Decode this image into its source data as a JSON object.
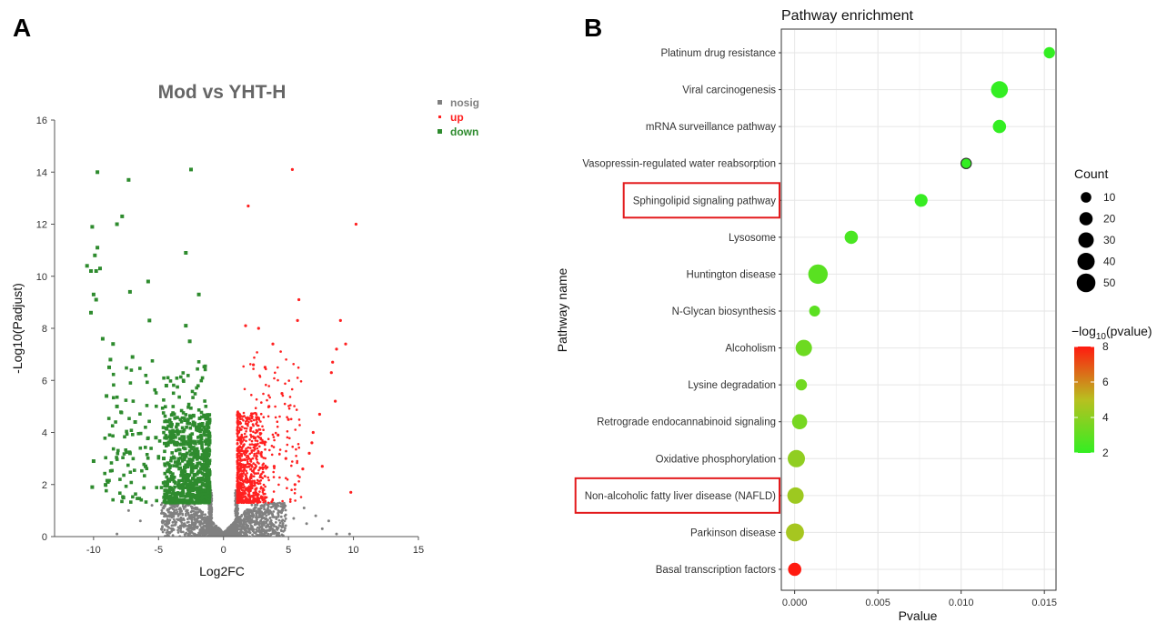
{
  "panels": {
    "a_label": "A",
    "b_label": "B"
  },
  "chart_data": [
    {
      "type": "scatter",
      "title": "Mod vs YHT-H",
      "xlabel": "Log2FC",
      "ylabel": "-Log10(Padjust)",
      "xlim": [
        -13,
        15
      ],
      "ylim": [
        0,
        16
      ],
      "xticks": [
        -10,
        -5,
        0,
        5,
        10,
        15
      ],
      "yticks": [
        0,
        2,
        4,
        6,
        8,
        10,
        12,
        14,
        16
      ],
      "grid": false,
      "legend_position": "top-right",
      "legend": [
        {
          "name": "nosig",
          "color": "#808080"
        },
        {
          "name": "up",
          "color": "#ff2020"
        },
        {
          "name": "down",
          "color": "#2e8b2e"
        }
      ],
      "series": [
        {
          "name": "up",
          "points": [
            [
              5.3,
              14.1
            ],
            [
              1.9,
              12.7
            ],
            [
              10.2,
              12.0
            ],
            [
              5.8,
              9.1
            ],
            [
              5.7,
              8.3
            ],
            [
              9.0,
              8.3
            ],
            [
              9.4,
              7.4
            ],
            [
              8.7,
              7.2
            ],
            [
              8.4,
              6.7
            ],
            [
              8.3,
              6.3
            ],
            [
              8.6,
              5.2
            ],
            [
              7.4,
              4.7
            ],
            [
              6.9,
              4.0
            ],
            [
              6.8,
              3.6
            ],
            [
              6.6,
              3.2
            ],
            [
              9.8,
              1.7
            ],
            [
              1.7,
              8.1
            ],
            [
              2.7,
              8.0
            ],
            [
              3.2,
              6.5
            ],
            [
              3.8,
              7.4
            ],
            [
              4.5,
              5.5
            ],
            [
              2.3,
              6.6
            ],
            [
              3.5,
              5.0
            ],
            [
              5.0,
              4.5
            ],
            [
              4.2,
              3.9
            ],
            [
              6.1,
              2.6
            ],
            [
              5.5,
              2.0
            ],
            [
              7.6,
              2.7
            ],
            [
              4.8,
              3.0
            ],
            [
              3.9,
              2.7
            ]
          ]
        },
        {
          "name": "down",
          "points": [
            [
              -9.7,
              14.0
            ],
            [
              -2.5,
              14.1
            ],
            [
              -7.3,
              13.7
            ],
            [
              -7.8,
              12.3
            ],
            [
              -8.2,
              12.0
            ],
            [
              -10.1,
              11.9
            ],
            [
              -9.7,
              11.1
            ],
            [
              -2.9,
              10.9
            ],
            [
              -9.9,
              10.8
            ],
            [
              -10.5,
              10.4
            ],
            [
              -10.2,
              10.2
            ],
            [
              -9.8,
              10.2
            ],
            [
              -9.5,
              10.3
            ],
            [
              -5.8,
              9.8
            ],
            [
              -10.0,
              9.3
            ],
            [
              -7.2,
              9.4
            ],
            [
              -9.8,
              9.1
            ],
            [
              -1.9,
              9.3
            ],
            [
              -10.2,
              8.6
            ],
            [
              -5.7,
              8.3
            ],
            [
              -2.9,
              8.1
            ],
            [
              -9.3,
              7.6
            ],
            [
              -8.5,
              7.4
            ],
            [
              -2.6,
              7.5
            ],
            [
              -8.7,
              6.8
            ],
            [
              -8.8,
              6.5
            ],
            [
              -7.0,
              6.9
            ],
            [
              -9.0,
              5.4
            ],
            [
              -8.2,
              5.0
            ],
            [
              -4.4,
              5.8
            ],
            [
              -10.0,
              2.9
            ],
            [
              -8.9,
              2.1
            ],
            [
              -10.1,
              1.9
            ],
            [
              -7.7,
              1.5
            ],
            [
              -6.0,
              2.7
            ],
            [
              -3.8,
              4.7
            ],
            [
              -6.8,
              4.4
            ],
            [
              -5.2,
              3.8
            ],
            [
              -7.2,
              3.2
            ],
            [
              -4.6,
              3.0
            ]
          ]
        },
        {
          "name": "nosig",
          "points": [
            [
              -8.2,
              0.1
            ],
            [
              -7.3,
              1.0
            ],
            [
              -5.5,
              1.2
            ],
            [
              -4.6,
              0.9
            ],
            [
              -4.0,
              0.8
            ],
            [
              3.4,
              1.0
            ],
            [
              4.6,
              1.1
            ],
            [
              6.2,
              1.1
            ],
            [
              7.1,
              0.8
            ],
            [
              8.1,
              0.6
            ],
            [
              8.7,
              0.1
            ],
            [
              9.7,
              0.1
            ],
            [
              -3.3,
              0.6
            ],
            [
              -2.7,
              0.4
            ],
            [
              2.7,
              0.5
            ],
            [
              3.9,
              0.4
            ],
            [
              5.4,
              0.7
            ],
            [
              6.4,
              0.5
            ],
            [
              7.6,
              0.3
            ],
            [
              -6.4,
              0.6
            ]
          ]
        }
      ]
    },
    {
      "type": "scatter",
      "title": "Pathway enrichment",
      "xlabel": "Pvalue",
      "ylabel": "Pathway name",
      "xlim": [
        -0.0008,
        0.0157
      ],
      "xticks": [
        "0.000",
        "0.005",
        "0.010",
        "0.015"
      ],
      "grid": true,
      "legend_position": "right",
      "highlighted": [
        "Sphingolipid signaling pathway",
        "Non-alcoholic fatty liver disease (NAFLD)"
      ],
      "size_legend": {
        "title": "Count",
        "values": [
          10,
          20,
          30,
          40,
          50
        ]
      },
      "color_legend": {
        "title": "−log10(pvalue)",
        "ticks": [
          2,
          4,
          6,
          8
        ],
        "low_color": "#33ee22",
        "high_color": "#ff1a10"
      },
      "points": [
        {
          "pathway": "Platinum drug resistance",
          "pvalue": 0.0153,
          "count": 12,
          "neglog10p": 1.8
        },
        {
          "pathway": "Viral carcinogenesis",
          "pvalue": 0.0123,
          "count": 38,
          "neglog10p": 1.9
        },
        {
          "pathway": "mRNA surveillance pathway",
          "pvalue": 0.0123,
          "count": 20,
          "neglog10p": 1.9
        },
        {
          "pathway": "Vasopressin-regulated water reabsorption",
          "pvalue": 0.0103,
          "count": 9,
          "neglog10p": 2.0
        },
        {
          "pathway": "Sphingolipid signaling pathway",
          "pvalue": 0.0076,
          "count": 18,
          "neglog10p": 2.1
        },
        {
          "pathway": "Lysosome",
          "pvalue": 0.0034,
          "count": 20,
          "neglog10p": 2.5
        },
        {
          "pathway": "Huntington disease",
          "pvalue": 0.0014,
          "count": 55,
          "neglog10p": 2.85
        },
        {
          "pathway": "N-Glycan biosynthesis",
          "pvalue": 0.0012,
          "count": 11,
          "neglog10p": 2.9
        },
        {
          "pathway": "Alcoholism",
          "pvalue": 0.00055,
          "count": 35,
          "neglog10p": 3.3
        },
        {
          "pathway": "Lysine degradation",
          "pvalue": 0.0004,
          "count": 12,
          "neglog10p": 3.4
        },
        {
          "pathway": "Retrograde endocannabinoid signaling",
          "pvalue": 0.0003,
          "count": 28,
          "neglog10p": 3.5
        },
        {
          "pathway": "Oxidative phosphorylation",
          "pvalue": 0.0001,
          "count": 40,
          "neglog10p": 4.1
        },
        {
          "pathway": "Non-alcoholic fatty liver disease (NAFLD)",
          "pvalue": 5e-05,
          "count": 35,
          "neglog10p": 4.4
        },
        {
          "pathway": "Parkinson disease",
          "pvalue": 2e-05,
          "count": 45,
          "neglog10p": 4.6
        },
        {
          "pathway": "Basal transcription factors",
          "pvalue": 1e-06,
          "count": 20,
          "neglog10p": 8.0
        }
      ]
    }
  ]
}
